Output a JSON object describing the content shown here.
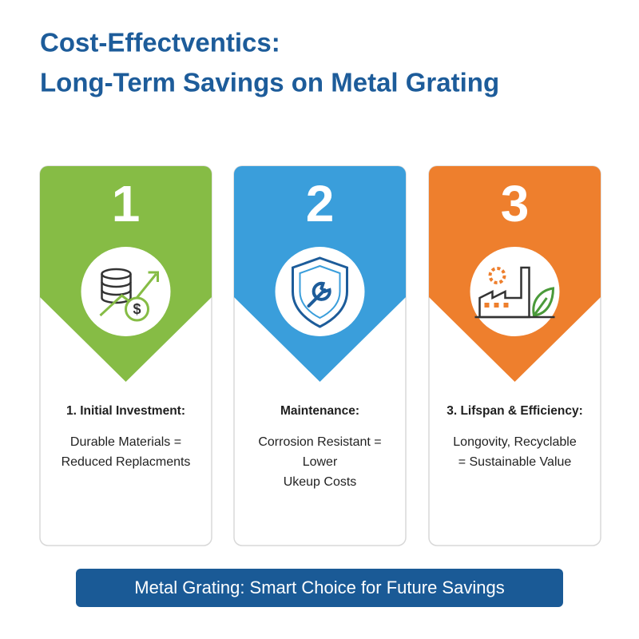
{
  "header": {
    "title": [
      "Cost-Effectventics:",
      "Long-Term Savings on Metal Grating"
    ]
  },
  "cards": [
    {
      "number": "1",
      "heading": "1. Initial Investment:",
      "body": [
        "Durable Materials =",
        "Reduced Replacments"
      ]
    },
    {
      "number": "2",
      "heading": "Maintenance:",
      "body": [
        "Corrosion Resistant =",
        "Lower",
        "Ukeup Costs"
      ]
    },
    {
      "number": "3",
      "heading": "3. Lifspan & Efficiency:",
      "body": [
        "Longovity, Recyclable",
        "= Sustainable Value"
      ]
    }
  ],
  "footer": {
    "banner": "Metal Grating: Smart Choice for Future Savings"
  }
}
